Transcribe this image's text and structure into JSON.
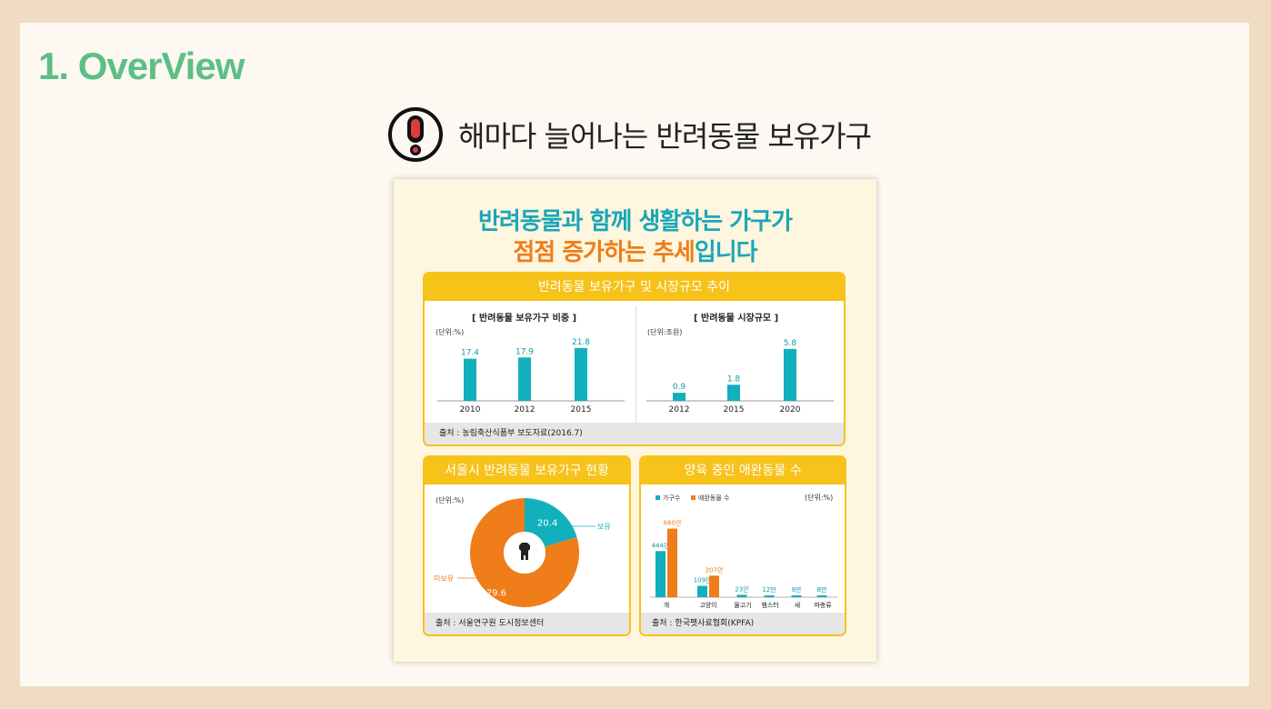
{
  "slide": {
    "title": "1. OverView",
    "headline": "해마다 늘어나는 반려동물 보유가구"
  },
  "infographic": {
    "title_line1": "반려동물과 함께 생활하는 가구가",
    "title_line2_highlight": "점점 증가하는 추세",
    "title_line2_rest": "입니다",
    "panel_trend": {
      "header": "반려동물 보유가구 및 시장규모 추이",
      "source": "출처 : 농림축산식품부 보도자료(2016.7)"
    },
    "panel_seoul": {
      "header": "서울시 반려동물 보유가구 현황",
      "unit": "(단위:%)",
      "source": "출처 : 서울연구원 도시정보센터"
    },
    "panel_pets": {
      "header": "양육 중인 애완동물 수",
      "unit": "(단위:%)",
      "source": "출처 : 한국펫사료협회(KPFA)"
    }
  },
  "chart_data": [
    {
      "type": "bar",
      "title": "[ 반려동물 보유가구 비중 ]",
      "unit": "(단위:%)",
      "categories": [
        "2010",
        "2012",
        "2015"
      ],
      "values": [
        17.4,
        17.9,
        21.8
      ],
      "labels": [
        "17.4",
        "17.9",
        "21.8"
      ],
      "ylim": [
        0,
        24
      ],
      "color": "#12b0bd"
    },
    {
      "type": "bar",
      "title": "[ 반려동물 시장규모 ]",
      "unit": "(단위:조원)",
      "categories": [
        "2012",
        "2015",
        "2020"
      ],
      "values": [
        0.9,
        1.8,
        5.8
      ],
      "labels": [
        "0.9",
        "1.8",
        "5.8"
      ],
      "ylim": [
        0,
        6.5
      ],
      "color": "#12b0bd"
    },
    {
      "type": "pie",
      "title": "서울시 반려동물 보유가구 현황",
      "unit": "(단위:%)",
      "slices": [
        {
          "name": "보유",
          "value": 20.4,
          "label": "20.4",
          "color": "#12b0bd"
        },
        {
          "name": "미보유",
          "value": 79.6,
          "label": "79.6",
          "color": "#ee7d1a"
        }
      ]
    },
    {
      "type": "bar",
      "title": "양육 중인 애완동물 수",
      "unit": "(단위:%)",
      "categories": [
        "개",
        "고양이",
        "물고기",
        "햄스터",
        "새",
        "파충류"
      ],
      "series": [
        {
          "name": "가구수",
          "color": "#12b0bd",
          "values": [
            444,
            109,
            23,
            12,
            9,
            8
          ],
          "labels": [
            "444만",
            "109만",
            "23만",
            "12만",
            "9만",
            "8만"
          ]
        },
        {
          "name": "애완동물 수",
          "color": "#ee7d1a",
          "values": [
            660,
            207,
            null,
            null,
            null,
            null
          ],
          "labels": [
            "660만",
            "207만",
            null,
            null,
            null,
            null
          ]
        }
      ],
      "ylim": [
        0,
        700
      ]
    }
  ],
  "colors": {
    "green": "#5cbf86",
    "teal": "#12b0bd",
    "orange": "#ee7d1a",
    "yellow": "#f7c21a"
  }
}
